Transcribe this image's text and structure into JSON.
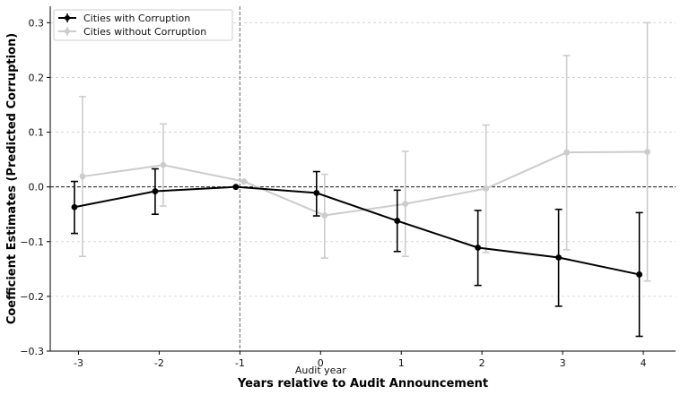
{
  "chart_data": {
    "type": "line",
    "xlabel": "Years relative to Audit Announcement",
    "ylabel": "Coefficient Estimates (Predicted Corruption)",
    "x": [
      -3,
      -2,
      -1,
      0,
      1,
      2,
      3,
      4
    ],
    "xlim": [
      -3.35,
      4.4
    ],
    "ylim": [
      -0.3,
      0.33
    ],
    "yticks": [
      -0.3,
      -0.2,
      -0.1,
      0.0,
      0.1,
      0.2,
      0.3
    ],
    "ytick_labels": [
      "−0.3",
      "−0.2",
      "−0.1",
      "0.0",
      "0.1",
      "0.2",
      "0.3"
    ],
    "xtick_labels": [
      "-3",
      "-2",
      "-1",
      "0",
      "1",
      "2",
      "3",
      "4"
    ],
    "annotation": "Audit year",
    "annotation_x": 0,
    "reference_vline_x": -1,
    "reference_hline_y": 0,
    "grid": "horizontal-dashed",
    "legend_position": "top-left",
    "series": [
      {
        "name": "Cities with Corruption",
        "color": "#000000",
        "x_offset": -0.05,
        "values": [
          -0.037,
          -0.008,
          0.0,
          -0.011,
          -0.062,
          -0.111,
          -0.129,
          -0.16
        ],
        "lower": [
          -0.085,
          -0.05,
          0.0,
          -0.053,
          -0.118,
          -0.18,
          -0.218,
          -0.273
        ],
        "upper": [
          0.01,
          0.033,
          0.0,
          0.028,
          -0.006,
          -0.043,
          -0.041,
          -0.047
        ]
      },
      {
        "name": "Cities without Corruption",
        "color": "#cccccc",
        "x_offset": 0.05,
        "values": [
          0.019,
          0.04,
          0.01,
          -0.052,
          -0.031,
          -0.003,
          0.063,
          0.064
        ],
        "lower": [
          -0.127,
          -0.035,
          0.01,
          -0.13,
          -0.127,
          -0.12,
          -0.115,
          -0.172
        ],
        "upper": [
          0.165,
          0.115,
          0.01,
          0.023,
          0.065,
          0.113,
          0.24,
          0.3
        ]
      }
    ]
  }
}
